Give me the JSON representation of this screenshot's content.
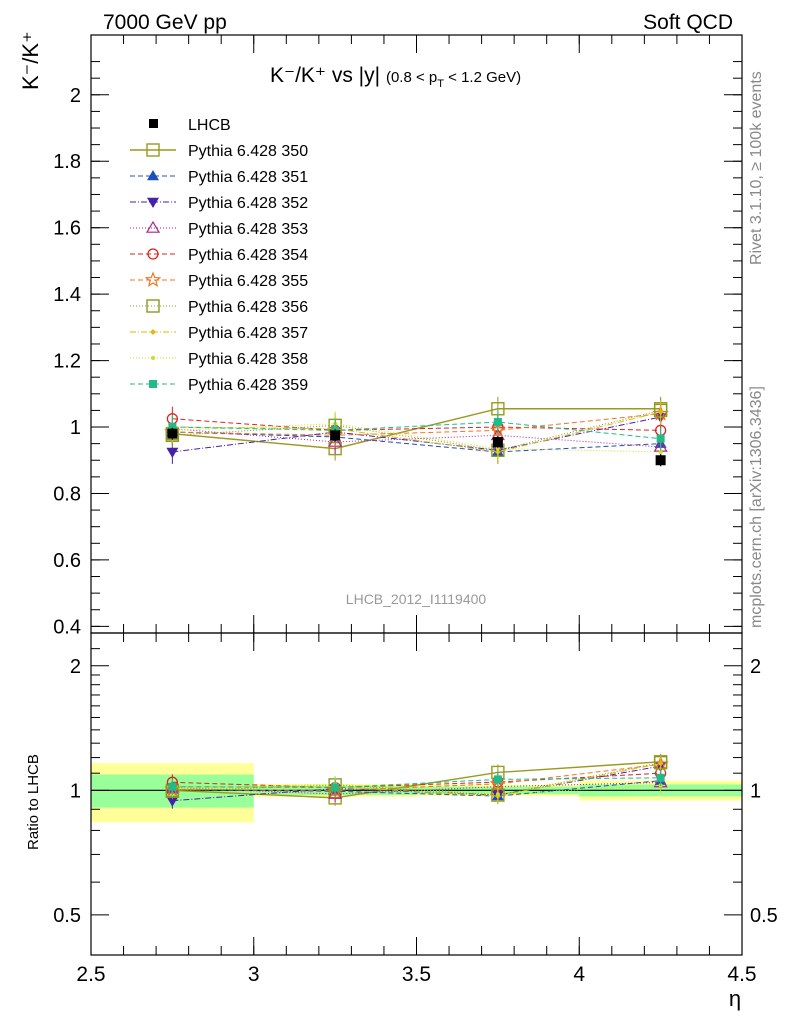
{
  "header": {
    "left": "7000 GeV pp",
    "right": "Soft QCD"
  },
  "side_labels": {
    "rivet": "Rivet 3.1.10, ≥ 100k events",
    "mcplots": "mcplots.cern.ch [arXiv:1306.3436]"
  },
  "chart_data": {
    "type": "scatter",
    "title_main": "K⁻/K⁺ vs |y|",
    "title_sub": "(0.8 < p",
    "title_sub_T": "T",
    "title_sub_end": " < 1.2 GeV)",
    "ylabel_top": "K⁻/K⁺",
    "ylabel_bottom": "Ratio to LHCB",
    "xlabel": "η",
    "watermark": "LHCB_2012_I1119400",
    "xlim": [
      2.5,
      4.5
    ],
    "ylim_top": [
      0.38,
      2.18
    ],
    "ylim_bottom": [
      0.4,
      2.4
    ],
    "x": [
      2.75,
      3.25,
      3.75,
      4.25
    ],
    "x_ticks": [
      "2.5",
      "3",
      "3.5",
      "4",
      "4.5"
    ],
    "y_ticks_top": [
      "0.4",
      "0.6",
      "0.8",
      "1",
      "1.2",
      "1.4",
      "1.6",
      "1.8",
      "2"
    ],
    "y_ticks_bottom": [
      "0.5",
      "1",
      "2"
    ],
    "data": {
      "name": "LHCB",
      "values": [
        0.98,
        0.975,
        0.955,
        0.9
      ],
      "band_inner": [
        0.09,
        0.025,
        0.02,
        0.03
      ],
      "band_outer": [
        0.16,
        0.035,
        0.03,
        0.05
      ]
    },
    "series": [
      {
        "name": "Pythia 6.428 350",
        "color": "#9a9a1e",
        "marker": "square-open",
        "dash": "",
        "width": 1.4,
        "values": [
          0.98,
          0.935,
          1.055,
          1.055
        ]
      },
      {
        "name": "Pythia 6.428 351",
        "color": "#1f4fb8",
        "marker": "triangle-up",
        "dash": "5,3",
        "width": 1,
        "values": [
          0.985,
          0.97,
          0.925,
          0.95
        ]
      },
      {
        "name": "Pythia 6.428 352",
        "color": "#4422aa",
        "marker": "triangle-down",
        "dash": "6,2,1,2",
        "width": 1,
        "values": [
          0.925,
          0.985,
          0.93,
          1.03
        ]
      },
      {
        "name": "Pythia 6.428 353",
        "color": "#b01e8c",
        "marker": "triangle-open",
        "dash": "1,2",
        "width": 1,
        "values": [
          0.995,
          0.955,
          0.975,
          0.94
        ]
      },
      {
        "name": "Pythia 6.428 354",
        "color": "#dd2222",
        "marker": "circle-open",
        "dash": "5,3",
        "width": 1,
        "values": [
          1.025,
          0.99,
          1.0,
          0.99
        ]
      },
      {
        "name": "Pythia 6.428 355",
        "color": "#ee7722",
        "marker": "star-open",
        "dash": "5,3",
        "width": 1,
        "values": [
          0.985,
          0.975,
          0.99,
          1.04
        ]
      },
      {
        "name": "Pythia 6.428 356",
        "color": "#8a9a1e",
        "marker": "square-open",
        "dash": "1,2",
        "width": 1,
        "values": [
          0.975,
          1.005,
          0.93,
          1.05
        ]
      },
      {
        "name": "Pythia 6.428 357",
        "color": "#ddbb11",
        "marker": "diamond-small",
        "dash": "6,2,1,2",
        "width": 1,
        "values": [
          1.0,
          0.995,
          0.925,
          1.045
        ]
      },
      {
        "name": "Pythia 6.428 358",
        "color": "#ccdd22",
        "marker": "dot",
        "dash": "1,2",
        "width": 1,
        "values": [
          0.99,
          1.01,
          0.935,
          0.925
        ]
      },
      {
        "name": "Pythia 6.428 359",
        "color": "#22bb88",
        "marker": "square-filled",
        "dash": "5,3",
        "width": 1,
        "values": [
          1.0,
          0.99,
          1.015,
          0.965
        ]
      }
    ],
    "legend_position": "top-left"
  }
}
